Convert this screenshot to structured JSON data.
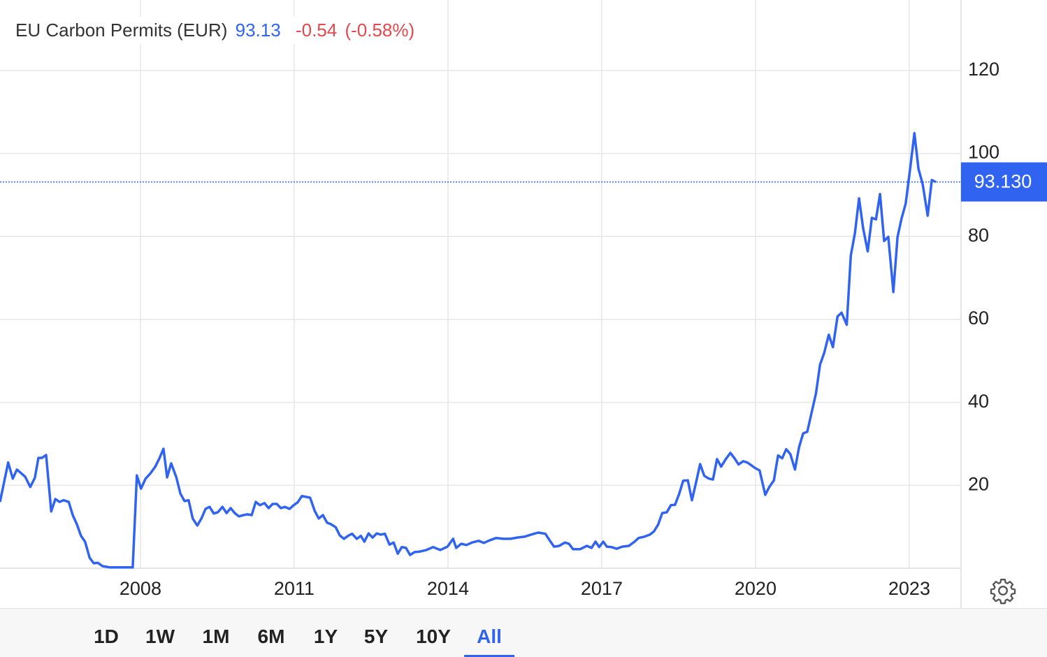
{
  "chart_data": {
    "type": "line",
    "title": "EU Carbon Permits (EUR)",
    "price": "93.13",
    "change": "-0.54",
    "change_percent": "(-0.58%)",
    "color": "#2f63f0",
    "grid": true,
    "xlim": [
      2005.26,
      2024.01
    ],
    "xticks": [
      2008,
      2011,
      2014,
      2017,
      2020,
      2023
    ],
    "ylim": [
      0,
      137
    ],
    "yticks": [
      20,
      40,
      60,
      80,
      100,
      120
    ],
    "price_line": {
      "value": 93.13,
      "label": "93.130"
    },
    "x": [
      2005.26,
      2005.42,
      2005.51,
      2005.59,
      2005.75,
      2005.85,
      2005.94,
      2006.01,
      2006.08,
      2006.16,
      2006.26,
      2006.34,
      2006.42,
      2006.5,
      2006.6,
      2006.68,
      2006.76,
      2006.84,
      2006.92,
      2007.01,
      2007.09,
      2007.17,
      2007.26,
      2007.41,
      2007.85,
      2007.93,
      2008.01,
      2008.1,
      2008.19,
      2008.29,
      2008.37,
      2008.45,
      2008.52,
      2008.6,
      2008.7,
      2008.78,
      2008.86,
      2008.94,
      2009.02,
      2009.11,
      2009.19,
      2009.27,
      2009.35,
      2009.43,
      2009.51,
      2009.6,
      2009.68,
      2009.76,
      2009.84,
      2009.92,
      2010.01,
      2010.09,
      2010.17,
      2010.25,
      2010.33,
      2010.42,
      2010.5,
      2010.58,
      2010.66,
      2010.74,
      2010.82,
      2010.91,
      2010.99,
      2011.07,
      2011.15,
      2011.23,
      2011.31,
      2011.4,
      2011.48,
      2011.56,
      2011.64,
      2011.72,
      2011.81,
      2011.89,
      2011.97,
      2012.05,
      2012.13,
      2012.22,
      2012.3,
      2012.37,
      2012.45,
      2012.53,
      2012.61,
      2012.69,
      2012.77,
      2012.86,
      2012.94,
      2013.02,
      2013.1,
      2013.18,
      2013.26,
      2013.35,
      2013.44,
      2013.58,
      2013.71,
      2013.85,
      2013.99,
      2014.1,
      2014.16,
      2014.26,
      2014.36,
      2014.47,
      2014.6,
      2014.7,
      2014.81,
      2014.94,
      2015.08,
      2015.22,
      2015.35,
      2015.49,
      2015.62,
      2015.76,
      2015.9,
      2015.99,
      2016.07,
      2016.17,
      2016.28,
      2016.36,
      2016.44,
      2016.58,
      2016.71,
      2016.8,
      2016.88,
      2016.95,
      2017.03,
      2017.1,
      2017.19,
      2017.29,
      2017.4,
      2017.53,
      2017.64,
      2017.72,
      2017.83,
      2017.94,
      2018.02,
      2018.1,
      2018.18,
      2018.27,
      2018.35,
      2018.43,
      2018.51,
      2018.59,
      2018.68,
      2018.76,
      2018.84,
      2018.92,
      2019.0,
      2019.09,
      2019.17,
      2019.25,
      2019.33,
      2019.42,
      2019.51,
      2019.59,
      2019.67,
      2019.76,
      2019.84,
      2019.92,
      2020.0,
      2020.08,
      2020.19,
      2020.27,
      2020.36,
      2020.44,
      2020.52,
      2020.6,
      2020.68,
      2020.77,
      2020.85,
      2020.93,
      2021.01,
      2021.09,
      2021.18,
      2021.26,
      2021.34,
      2021.43,
      2021.51,
      2021.6,
      2021.68,
      2021.78,
      2021.86,
      2021.94,
      2022.02,
      2022.1,
      2022.19,
      2022.27,
      2022.35,
      2022.43,
      2022.51,
      2022.59,
      2022.69,
      2022.77,
      2022.85,
      2022.93,
      2023.02,
      2023.1,
      2023.18,
      2023.26,
      2023.36,
      2023.44,
      2023.52
    ],
    "values": [
      16.0,
      25.5,
      21.6,
      23.8,
      22.1,
      19.6,
      21.8,
      26.6,
      26.6,
      27.3,
      13.7,
      16.7,
      16.0,
      16.4,
      16.0,
      12.8,
      10.6,
      7.8,
      6.4,
      2.5,
      1.2,
      1.3,
      0.5,
      0.2,
      0.2,
      22.4,
      19.2,
      21.6,
      22.8,
      24.5,
      26.5,
      28.8,
      21.9,
      25.3,
      21.9,
      18.0,
      16.2,
      16.4,
      12.0,
      10.3,
      12.0,
      14.3,
      14.8,
      13.2,
      13.5,
      14.8,
      13.3,
      14.5,
      13.3,
      12.5,
      12.8,
      13.0,
      12.8,
      16.0,
      15.2,
      15.7,
      14.5,
      15.5,
      15.5,
      14.5,
      14.8,
      14.3,
      15.2,
      15.9,
      17.4,
      17.2,
      17.0,
      13.8,
      12.0,
      12.8,
      11.0,
      10.6,
      9.9,
      7.9,
      7.1,
      7.8,
      8.3,
      7.1,
      7.8,
      6.4,
      8.4,
      7.4,
      8.4,
      8.1,
      8.3,
      5.7,
      6.2,
      3.5,
      5.1,
      4.9,
      3.2,
      3.9,
      4.0,
      4.4,
      5.1,
      4.4,
      5.2,
      7.1,
      4.9,
      5.9,
      5.6,
      6.2,
      6.6,
      6.1,
      6.7,
      7.3,
      7.1,
      7.1,
      7.4,
      7.6,
      8.1,
      8.6,
      8.3,
      6.6,
      5.2,
      5.4,
      6.2,
      5.9,
      4.6,
      4.6,
      5.4,
      4.9,
      6.4,
      5.1,
      6.4,
      5.2,
      5.1,
      4.7,
      5.2,
      5.4,
      6.4,
      7.3,
      7.6,
      8.1,
      8.9,
      10.5,
      13.3,
      13.5,
      15.2,
      15.3,
      17.9,
      21.1,
      21.2,
      16.4,
      20.7,
      25.1,
      22.3,
      21.6,
      21.4,
      26.3,
      24.5,
      26.3,
      27.8,
      26.5,
      25.0,
      25.8,
      25.5,
      24.8,
      24.1,
      23.6,
      17.7,
      19.6,
      21.2,
      27.2,
      26.5,
      28.7,
      27.5,
      23.8,
      29.2,
      32.5,
      32.9,
      37.3,
      42.2,
      49.1,
      51.9,
      56.3,
      53.3,
      60.7,
      61.6,
      58.7,
      75.4,
      80.8,
      89.2,
      82.0,
      76.4,
      84.5,
      84.1,
      90.2,
      78.9,
      79.9,
      66.6,
      79.8,
      84.3,
      87.9,
      96.6,
      104.9,
      96.3,
      92.7,
      85.0,
      93.6,
      93.1
    ]
  },
  "controls": {
    "ranges": [
      "1D",
      "1W",
      "1M",
      "6M",
      "1Y",
      "5Y",
      "10Y",
      "All"
    ],
    "active": 7
  }
}
